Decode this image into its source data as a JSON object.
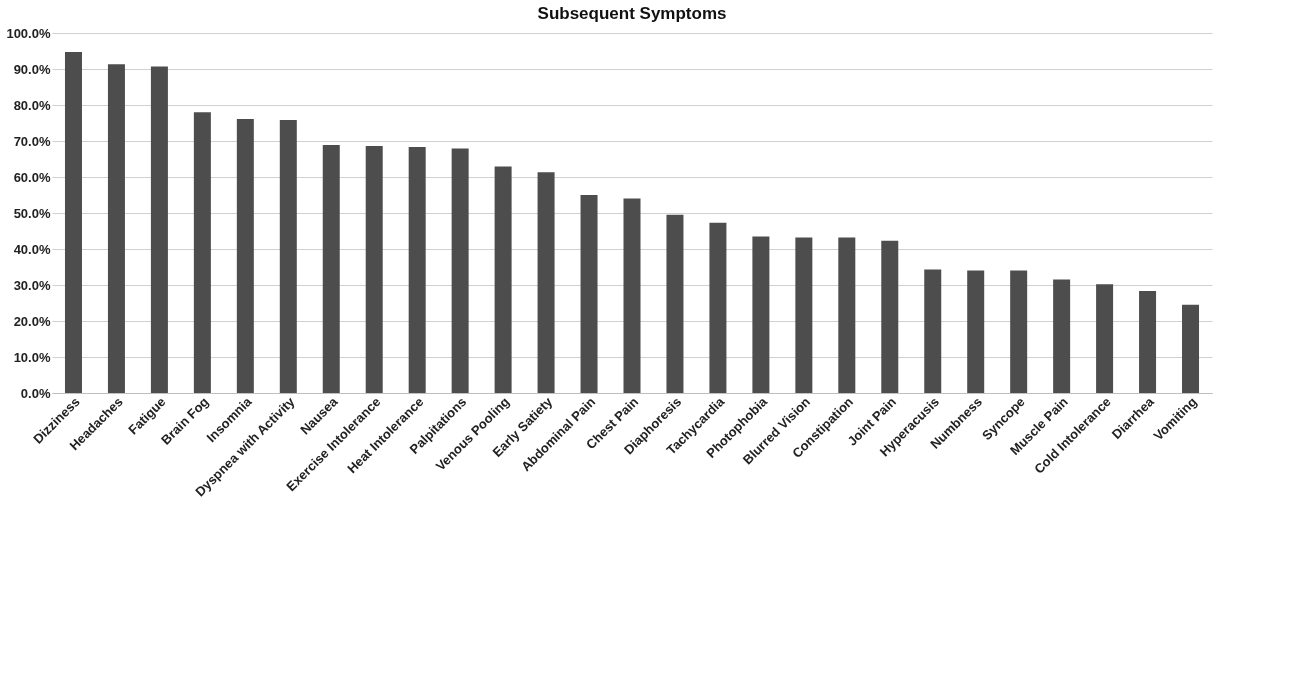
{
  "chart_data": {
    "type": "bar",
    "title": "Subsequent Symptoms",
    "categories": [
      "Dizziness",
      "Headaches",
      "Fatigue",
      "Brain Fog",
      "Insomnia",
      "Dyspnea with Activity",
      "Nausea",
      "Exercise Intolerance",
      "Heat Intolerance",
      "Palpitations",
      "Venous Pooling",
      "Early Satiety",
      "Abdominal Pain",
      "Chest Pain",
      "Diaphoresis",
      "Tachycardia",
      "Photophobia",
      "Blurred Vision",
      "Constipation",
      "Joint Pain",
      "Hyperacusis",
      "Numbness",
      "Syncope",
      "Muscle Pain",
      "Cold Intolerance",
      "Diarrhea",
      "Vomiting"
    ],
    "values": [
      94.7,
      91.3,
      90.7,
      78.0,
      76.1,
      75.8,
      68.9,
      68.6,
      68.3,
      67.9,
      62.9,
      61.3,
      55.0,
      54.0,
      49.5,
      47.3,
      43.5,
      43.2,
      43.2,
      42.3,
      34.3,
      34.0,
      34.0,
      31.5,
      30.2,
      28.3,
      24.5
    ],
    "color": "#4d4d4d",
    "ylim": [
      0,
      100
    ],
    "yticks": [
      {
        "value": 0,
        "label": "0.0%"
      },
      {
        "value": 10,
        "label": "10.0%"
      },
      {
        "value": 20,
        "label": "20.0%"
      },
      {
        "value": 30,
        "label": "30.0%"
      },
      {
        "value": 40,
        "label": "40.0%"
      },
      {
        "value": 50,
        "label": "50.0%"
      },
      {
        "value": 60,
        "label": "60.0%"
      },
      {
        "value": 70,
        "label": "70.0%"
      },
      {
        "value": 80,
        "label": "80.0%"
      },
      {
        "value": 90,
        "label": "90.0%"
      },
      {
        "value": 100,
        "label": "100.0%"
      }
    ],
    "grid": "y"
  }
}
